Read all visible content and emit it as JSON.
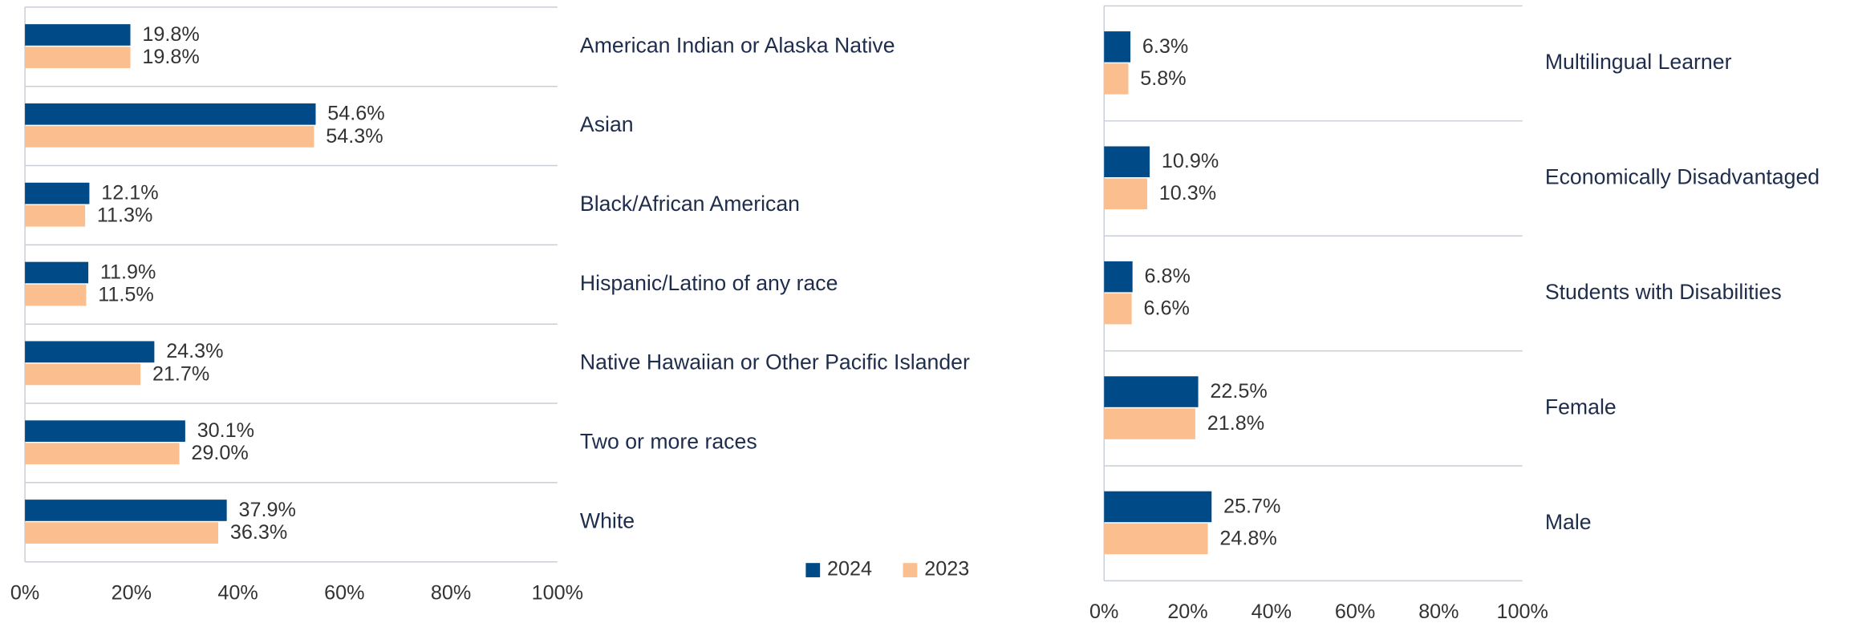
{
  "chart_data": [
    {
      "type": "hbar",
      "categories": [
        "American Indian or Alaska Native",
        "Asian",
        "Black/African American",
        "Hispanic/Latino of any race",
        "Native Hawaiian or Other Pacific Islander",
        "Two or more races",
        "White"
      ],
      "series": [
        {
          "name": "2024",
          "color": "#004b87",
          "values": [
            19.8,
            54.6,
            12.1,
            11.9,
            24.3,
            30.1,
            37.9
          ],
          "value_labels": [
            "19.8%",
            "54.6%",
            "12.1%",
            "11.9%",
            "24.3%",
            "30.1%",
            "37.9%"
          ]
        },
        {
          "name": "2023",
          "color": "#fbbf8f",
          "values": [
            19.8,
            54.3,
            11.3,
            11.5,
            21.7,
            29.0,
            36.3
          ],
          "value_labels": [
            "19.8%",
            "54.3%",
            "11.3%",
            "11.5%",
            "21.7%",
            "29.0%",
            "36.3%"
          ]
        }
      ],
      "xlim": [
        0,
        100
      ],
      "xticks": [
        {
          "value": 0,
          "label": "0%"
        },
        {
          "value": 20,
          "label": "20%"
        },
        {
          "value": 40,
          "label": "40%"
        },
        {
          "value": 60,
          "label": "60%"
        },
        {
          "value": 80,
          "label": "80%"
        },
        {
          "value": 100,
          "label": "100%"
        }
      ],
      "legend": "bottom"
    },
    {
      "type": "hbar",
      "categories": [
        "Multilingual Learner",
        "Economically Disadvantaged",
        "Students with Disabilities",
        "Female",
        "Male"
      ],
      "series": [
        {
          "color": "#004b87",
          "values": [
            6.3,
            10.9,
            6.8,
            22.5,
            25.7
          ],
          "value_labels": [
            "6.3%",
            "10.9%",
            "6.8%",
            "22.5%",
            "25.7%"
          ]
        },
        {
          "color": "#fbbf8f",
          "values": [
            5.8,
            10.3,
            6.6,
            21.8,
            24.8
          ],
          "value_labels": [
            "5.8%",
            "10.3%",
            "6.6%",
            "21.8%",
            "24.8%"
          ]
        }
      ],
      "xlim": [
        0,
        100
      ],
      "xticks": [
        {
          "value": 0,
          "label": "0%"
        },
        {
          "value": 20,
          "label": "20%"
        },
        {
          "value": 40,
          "label": "40%"
        },
        {
          "value": 60,
          "label": "60%"
        },
        {
          "value": 80,
          "label": "80%"
        },
        {
          "value": 100,
          "label": "100%"
        }
      ]
    }
  ]
}
